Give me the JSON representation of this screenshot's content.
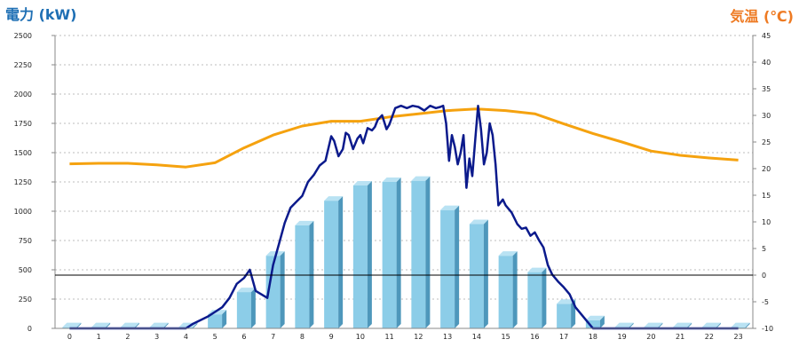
{
  "chart_data": {
    "type": "bar",
    "left_axis_title": "電力 (kW)",
    "right_axis_title": "気温 (℃)",
    "categories": [
      "0",
      "1",
      "2",
      "3",
      "4",
      "5",
      "6",
      "7",
      "8",
      "9",
      "10",
      "11",
      "12",
      "13",
      "14",
      "15",
      "16",
      "17",
      "18",
      "19",
      "20",
      "21",
      "22",
      "23"
    ],
    "y_left": {
      "min": 0,
      "max": 2500,
      "ticks": [
        0,
        250,
        500,
        750,
        1000,
        1250,
        1500,
        1750,
        2000,
        2250,
        2500
      ]
    },
    "y_right": {
      "min": -10,
      "max": 45,
      "ticks": [
        -10,
        -5,
        0,
        5,
        10,
        15,
        20,
        25,
        30,
        35,
        40,
        45
      ]
    },
    "grid": true,
    "colors": {
      "bar_front": "#8ccde8",
      "bar_side": "#4e97bb",
      "bar_top": "#b9e2f3",
      "power_line": "#0b1a8c",
      "temp_line": "#f5a20f",
      "left_title": "#1e6fb4",
      "right_title": "#ee7a22"
    },
    "series": [
      {
        "kind": "bar",
        "axis": "left",
        "values": [
          10,
          10,
          10,
          10,
          10,
          120,
          310,
          620,
          880,
          1090,
          1220,
          1250,
          1260,
          1010,
          890,
          620,
          480,
          210,
          70,
          10,
          10,
          10,
          10,
          10
        ]
      },
      {
        "kind": "line",
        "axis": "right",
        "values": [
          20.9,
          21.0,
          21.0,
          20.7,
          20.3,
          21.1,
          23.9,
          26.3,
          28.0,
          28.9,
          28.9,
          29.7,
          30.3,
          30.9,
          31.2,
          30.9,
          30.3,
          28.4,
          26.6,
          25.0,
          23.3,
          22.5,
          22.0,
          21.6
        ]
      },
      {
        "kind": "line",
        "axis": "left",
        "x": [
          0,
          0.5,
          1,
          1.5,
          2,
          2.5,
          3,
          3.5,
          4,
          4.25,
          4.5,
          4.75,
          5,
          5.25,
          5.5,
          5.75,
          6,
          6.2,
          6.4,
          6.6,
          6.8,
          7,
          7.2,
          7.4,
          7.6,
          7.8,
          8,
          8.2,
          8.4,
          8.6,
          8.8,
          9,
          9.1,
          9.25,
          9.4,
          9.5,
          9.6,
          9.75,
          9.9,
          10,
          10.1,
          10.25,
          10.4,
          10.5,
          10.6,
          10.75,
          10.9,
          11,
          11.2,
          11.4,
          11.6,
          11.8,
          12,
          12.2,
          12.4,
          12.6,
          12.75,
          12.85,
          12.95,
          13.05,
          13.15,
          13.25,
          13.35,
          13.45,
          13.55,
          13.65,
          13.75,
          13.85,
          13.95,
          14.05,
          14.15,
          14.25,
          14.35,
          14.45,
          14.55,
          14.65,
          14.75,
          14.9,
          15,
          15.2,
          15.4,
          15.55,
          15.7,
          15.85,
          16,
          16.15,
          16.3,
          16.45,
          16.6,
          16.8,
          17,
          17.2,
          17.4,
          17.6,
          17.8,
          18,
          18.5,
          19,
          19.5,
          20,
          20.5,
          21,
          21.5,
          22,
          22.5,
          23
        ],
        "values": [
          0,
          0,
          0,
          0,
          0,
          0,
          0,
          0,
          0,
          40,
          70,
          100,
          140,
          180,
          260,
          380,
          430,
          500,
          320,
          290,
          260,
          540,
          720,
          900,
          1030,
          1080,
          1130,
          1250,
          1310,
          1390,
          1430,
          1640,
          1600,
          1470,
          1530,
          1670,
          1650,
          1530,
          1620,
          1650,
          1580,
          1710,
          1690,
          1720,
          1780,
          1820,
          1700,
          1740,
          1880,
          1900,
          1880,
          1900,
          1890,
          1860,
          1900,
          1880,
          1890,
          1900,
          1750,
          1430,
          1650,
          1550,
          1400,
          1500,
          1650,
          1200,
          1450,
          1300,
          1600,
          1900,
          1700,
          1400,
          1500,
          1750,
          1650,
          1400,
          1050,
          1100,
          1050,
          990,
          890,
          850,
          860,
          790,
          820,
          750,
          690,
          540,
          460,
          400,
          350,
          290,
          180,
          120,
          60,
          0,
          0,
          0,
          0,
          0,
          0,
          0,
          0,
          0,
          0,
          0
        ]
      }
    ]
  }
}
